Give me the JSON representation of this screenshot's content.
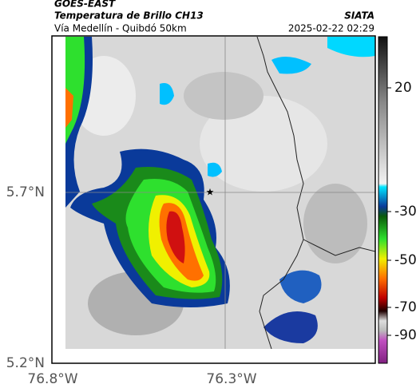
{
  "header": {
    "product": "GOES-EAST",
    "title": "Temperatura de Brillo CH13",
    "source": "SIATA",
    "subtitle": "Vía Medellín - Quibdó 50km",
    "datetime": "2025-02-22 02:29"
  },
  "axes": {
    "x_labels": [
      "76.8°W",
      "76.3°W"
    ],
    "y_labels": [
      "5.7°N",
      "5.2°N"
    ]
  },
  "colorbar": {
    "ticks": [
      20,
      -30,
      -50,
      -70,
      -90
    ]
  }
}
